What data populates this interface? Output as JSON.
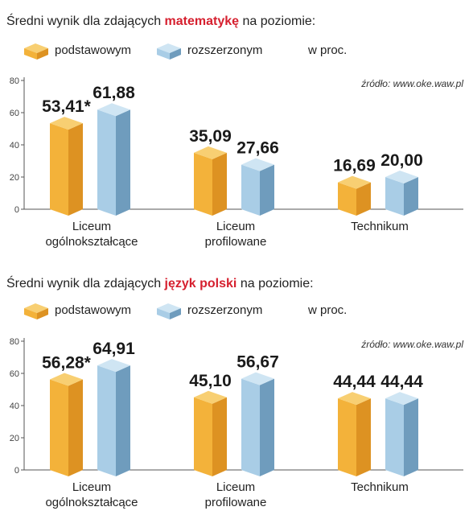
{
  "colors": {
    "basic_front": "#f3b23a",
    "basic_side": "#dd9222",
    "basic_top": "#f8cf72",
    "extended_front": "#a9cde6",
    "extended_side": "#6f9cbd",
    "extended_top": "#cfe5f3",
    "axis": "#555555",
    "title_highlight": "#d6202f"
  },
  "chart_data": [
    {
      "type": "bar",
      "title_prefix": "Średni wynik dla zdających",
      "title_subject": "matematykę",
      "title_suffix": "na poziomie:",
      "legend": [
        "podstawowym",
        "rozszerzonym"
      ],
      "unit": "w proc.",
      "source": "źródło: www.oke.waw.pl",
      "yticks": [
        0,
        20,
        40,
        60,
        80
      ],
      "ylim": [
        0,
        80
      ],
      "categories": [
        [
          "Liceum",
          "ogólnokształcące"
        ],
        [
          "Liceum",
          "profilowane"
        ],
        [
          "Technikum"
        ]
      ],
      "series": [
        {
          "name": "podstawowym",
          "values": [
            53.41,
            35.09,
            16.69
          ],
          "labels": [
            "53,41*",
            "35,09",
            "16,69"
          ]
        },
        {
          "name": "rozszerzonym",
          "values": [
            61.88,
            27.66,
            20.0
          ],
          "labels": [
            "61,88",
            "27,66",
            "20,00"
          ]
        }
      ]
    },
    {
      "type": "bar",
      "title_prefix": "Średni wynik dla zdających",
      "title_subject": "język polski",
      "title_suffix": "na poziomie:",
      "legend": [
        "podstawowym",
        "rozszerzonym"
      ],
      "unit": "w proc.",
      "source": "źródło: www.oke.waw.pl",
      "yticks": [
        0,
        20,
        40,
        60,
        80
      ],
      "ylim": [
        0,
        80
      ],
      "categories": [
        [
          "Liceum",
          "ogólnokształcące"
        ],
        [
          "Liceum",
          "profilowane"
        ],
        [
          "Technikum"
        ]
      ],
      "series": [
        {
          "name": "podstawowym",
          "values": [
            56.28,
            45.1,
            44.44
          ],
          "labels": [
            "56,28*",
            "45,10",
            "44,44"
          ]
        },
        {
          "name": "rozszerzonym",
          "values": [
            64.91,
            56.67,
            44.44
          ],
          "labels": [
            "64,91",
            "56,67",
            "44,44"
          ]
        }
      ]
    }
  ]
}
